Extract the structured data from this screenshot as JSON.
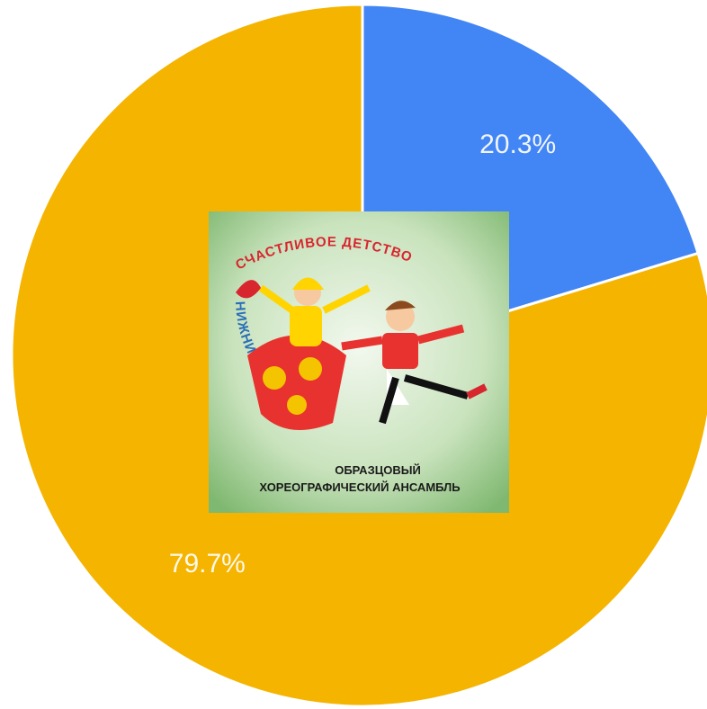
{
  "chart_data": {
    "type": "pie",
    "values": [
      20.3,
      79.7
    ],
    "value_labels": [
      "20.3%",
      "79.7%"
    ],
    "colors": [
      "#4285f4",
      "#f4b400"
    ],
    "start_angle": 0,
    "direction": "clockwise"
  },
  "logo": {
    "arc_top": "СЧАСТЛИВОЕ ДЕТСТВО",
    "arc_left": "НИЖНИЙ НОВГОРОД",
    "caption": [
      "ОБРАЗЦОВЫЙ",
      "ХОРЕОГРАФИЧЕСКИЙ АНСАМБЛЬ"
    ]
  }
}
